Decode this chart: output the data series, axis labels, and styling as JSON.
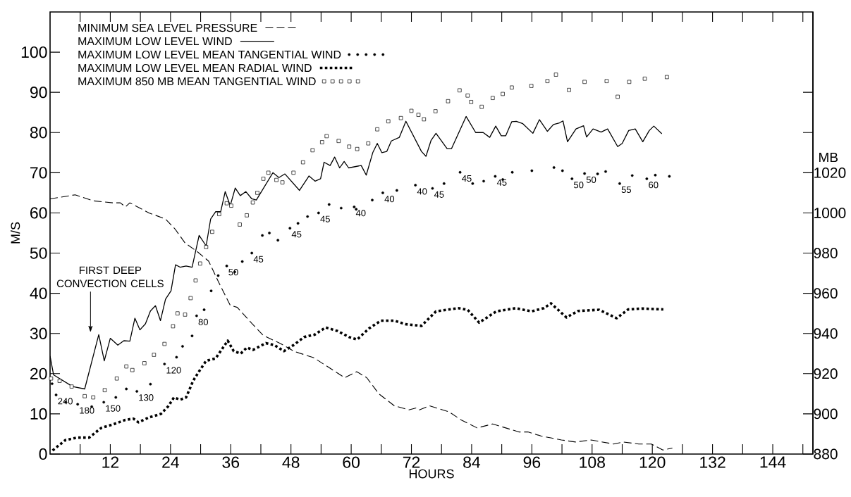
{
  "chart_data": {
    "type": "line",
    "xlabel": "HOURS",
    "ylabel": "M/S",
    "y2label": "MB",
    "xlim": [
      0,
      152
    ],
    "ylim": [
      0,
      110
    ],
    "y2lim": [
      880,
      1100
    ],
    "xticks": [
      {
        "value": 6,
        "label": null
      },
      12,
      {
        "value": 18,
        "label": null
      },
      24,
      {
        "value": 30,
        "label": null
      },
      36,
      {
        "value": 42,
        "label": null
      },
      48,
      {
        "value": 54,
        "label": null
      },
      60,
      {
        "value": 66,
        "label": null
      },
      72,
      {
        "value": 78,
        "label": null
      },
      84,
      {
        "value": 90,
        "label": null
      },
      96,
      {
        "value": 102,
        "label": null
      },
      108,
      {
        "value": 114,
        "label": null
      },
      120,
      {
        "value": 126,
        "label": null
      },
      132,
      {
        "value": 138,
        "label": null
      },
      144,
      {
        "value": 150,
        "label": null
      }
    ],
    "yticks": [
      0,
      10,
      20,
      30,
      40,
      50,
      60,
      70,
      80,
      90,
      100
    ],
    "y2ticks": [
      880,
      900,
      920,
      940,
      960,
      980,
      1000,
      1020,
      {
        "value": 1040,
        "label": null
      },
      {
        "value": 1060,
        "label": null
      }
    ],
    "legend": "top left",
    "series": [
      {
        "name": "MINIMUM SEA LEVEL PRESSURE",
        "axis": "y2",
        "line_style": "dashed",
        "color": "#000000",
        "x": [
          0,
          5,
          8.6,
          12.6,
          14,
          15,
          15.9,
          19.7,
          23,
          24.9,
          26.9,
          29.2,
          31.6,
          33.5,
          35.9,
          37.3,
          40.2,
          42.5,
          45.9,
          48.7,
          52.5,
          58.7,
          61.1,
          63.1,
          65.5,
          68.6,
          71.5,
          73,
          73.6,
          75.6,
          79.5,
          81.9,
          85.1,
          88.2,
          93.4,
          95.2,
          97.8,
          101.9,
          104.7,
          107.8,
          112.3,
          114.2,
          117.3,
          119.8,
          122.1,
          124
        ],
        "values": [
          1007,
          1009,
          1006,
          1005,
          1005,
          1003,
          1005,
          1000,
          997,
          992,
          985,
          981,
          976,
          966,
          954,
          953,
          945,
          939,
          935,
          931,
          928,
          918,
          921,
          918,
          910,
          904,
          902,
          903,
          902,
          904,
          901,
          897,
          893,
          895,
          891,
          891,
          889,
          887,
          886,
          887,
          885,
          886,
          885,
          885,
          882,
          883
        ]
      },
      {
        "name": "MAXIMUM LOW LEVEL WIND",
        "line_style": "solid",
        "color": "#000000",
        "x": [
          0,
          0.7,
          4.5,
          6.9,
          9.7,
          10.8,
          12,
          13.5,
          14.7,
          15.9,
          16.9,
          17.9,
          19,
          20,
          21,
          22,
          23,
          24.1,
          25,
          25.9,
          27.1,
          28.3,
          29.7,
          31.1,
          32,
          33,
          34,
          34.9,
          35.9,
          36.9,
          37.9,
          39,
          40.2,
          41.1,
          44.4,
          45.6,
          46.8,
          49.7,
          51.6,
          52.8,
          53.9,
          54.6,
          55.8,
          56.7,
          57.7,
          58.6,
          59.5,
          62,
          63,
          64.3,
          65.2,
          66.1,
          67.1,
          68,
          69.6,
          70.9,
          74,
          74.9,
          75.9,
          76.9,
          79.1,
          80,
          82.9,
          84.8,
          86.3,
          87.6,
          88.8,
          89.9,
          90.8,
          92,
          92.9,
          94.2,
          96.2,
          97.5,
          99.1,
          100.3,
          101.5,
          102.2,
          103.1,
          104.8,
          106.3,
          106.9,
          108.2,
          109.8,
          111.1,
          113.1,
          114,
          115.3,
          116.6,
          118.1,
          119.4,
          120.3,
          121.9
        ],
        "values": [
          24.4,
          19.7,
          16.8,
          16.2,
          29.7,
          23.2,
          28.8,
          27.1,
          28.2,
          28.1,
          33.8,
          30.9,
          32.4,
          35.6,
          36.9,
          33.2,
          38.5,
          40.6,
          47.1,
          46.5,
          46.8,
          46.5,
          54.4,
          51.8,
          58.5,
          60.3,
          60.3,
          65.3,
          61.8,
          66.2,
          64.3,
          65.3,
          63.5,
          63.2,
          70,
          68.8,
          69.7,
          65.6,
          69.2,
          67.9,
          68.5,
          72.6,
          71.8,
          73.9,
          71.2,
          72.8,
          71.2,
          71.8,
          69.4,
          75,
          77.3,
          75,
          75.3,
          77.9,
          78.8,
          82.8,
          75.3,
          74.1,
          78,
          79.8,
          76,
          76,
          84,
          80,
          80,
          78.8,
          81.6,
          79.2,
          79.2,
          82.7,
          82.8,
          82.2,
          79.8,
          83.2,
          80.3,
          82,
          82.4,
          82.9,
          77.7,
          80.9,
          81.7,
          78.9,
          80.9,
          80.1,
          80.9,
          76.5,
          77.3,
          80.5,
          80.9,
          77.7,
          80.5,
          81.6,
          79.7
        ]
      },
      {
        "name": "MAXIMUM LOW LEVEL MEAN TANGENTIAL WIND",
        "type": "scatter",
        "marker": "circle",
        "color": "#000000",
        "x": [
          0.4,
          1.2,
          3.1,
          5.5,
          8.3,
          10.7,
          13.1,
          15.2,
          17.3,
          20,
          22.8,
          25.2,
          26.4,
          28.3,
          29.2,
          30.7,
          32.1,
          33.5,
          35.2,
          36.8,
          38.3,
          40.2,
          42.3,
          43.7,
          45.4,
          47.8,
          49.4,
          51.3,
          53.5,
          55.6,
          58,
          60.6,
          61,
          64.2,
          66.3,
          69.1,
          72.8,
          76.2,
          78.5,
          81.7,
          84.2,
          86.4,
          88.7,
          90.2,
          92.1,
          96,
          100.4,
          102.1,
          104,
          106.5,
          109.1,
          110.7,
          113.5,
          116,
          118.9,
          120.6,
          123.4
        ],
        "values": [
          17.5,
          14.7,
          12.9,
          12.4,
          11.8,
          12.9,
          14.1,
          16.2,
          15.6,
          17.4,
          22.4,
          24.1,
          26.8,
          29.4,
          34.4,
          35.9,
          40.6,
          44.4,
          46.8,
          45.3,
          47.9,
          50,
          54.4,
          55,
          53.2,
          56.2,
          57.4,
          59.1,
          60,
          62.1,
          61.2,
          61.5,
          60.9,
          63.2,
          65,
          65.6,
          66.9,
          66.1,
          67.3,
          70.1,
          67.3,
          67.9,
          69.1,
          68.3,
          70.1,
          70.5,
          71.3,
          70.5,
          68.5,
          69.8,
          69.7,
          70.3,
          67.3,
          69.3,
          68.5,
          69.4,
          69.1
        ]
      },
      {
        "name": "MAXIMUM LOW LEVEL MEAN RADIAL WIND",
        "line_style": "dotted",
        "color": "#000000",
        "x": [
          0.5,
          3.1,
          5.5,
          7.8,
          10.2,
          12.6,
          15,
          16.6,
          17.6,
          19.7,
          22.1,
          23.5,
          24.7,
          25.9,
          27.1,
          28.5,
          29.7,
          31.1,
          33,
          35.4,
          36.6,
          38,
          39.2,
          40.4,
          43,
          44.7,
          46.6,
          48.5,
          50.6,
          52.7,
          54.9,
          57.3,
          59.6,
          61.2,
          63.5,
          65.9,
          68.6,
          70.8,
          74,
          76.9,
          81.3,
          83.2,
          85.5,
          88.9,
          92.8,
          95.9,
          98.4,
          99.8,
          102.9,
          105.2,
          109.4,
          112.9,
          115.2,
          118,
          122.2
        ],
        "values": [
          0.9,
          3.5,
          4.1,
          4.1,
          6.5,
          7.4,
          8.5,
          8.8,
          7.9,
          9.1,
          10,
          11.8,
          14.1,
          13.5,
          14.1,
          18.2,
          20.6,
          23.2,
          23.8,
          28.2,
          25.6,
          25,
          26.5,
          25.9,
          27.6,
          27.1,
          25.6,
          27.1,
          29.1,
          29.7,
          31.5,
          30.6,
          29.1,
          28.5,
          31.2,
          33.2,
          33.2,
          32.3,
          31.9,
          35.5,
          36.3,
          35.9,
          32.7,
          35.5,
          36.3,
          35.5,
          36.3,
          37.5,
          34,
          35.6,
          35.9,
          33.8,
          36,
          36.2,
          36
        ]
      },
      {
        "name": "MAXIMUM 850 MB MEAN TANGENTIAL WIND",
        "type": "scatter",
        "marker": "square",
        "color": "#000000",
        "x": [
          0.2,
          1.9,
          4.3,
          6.9,
          8.6,
          10.9,
          13.3,
          15.2,
          16.4,
          18.8,
          20.7,
          22.8,
          24.5,
          25.4,
          26.9,
          28,
          29,
          29.9,
          31.1,
          32.3,
          33.7,
          35.2,
          36.1,
          37.8,
          39.2,
          40.4,
          41.3,
          42.5,
          43.5,
          45.1,
          46.3,
          48.5,
          50.4,
          52.3,
          54.2,
          55.1,
          57.5,
          59.6,
          61.2,
          63.4,
          65.2,
          67.4,
          69.9,
          72,
          73.4,
          74.5,
          76.8,
          79.3,
          81.6,
          83.2,
          83.9,
          86,
          88.2,
          90.2,
          92,
          95.9,
          99.1,
          100.8,
          103.4,
          106.5,
          110.9,
          113.1,
          115.4,
          118.5,
          122.9
        ],
        "values": [
          18.8,
          18.2,
          16.8,
          14.4,
          14.1,
          15.9,
          18.8,
          21.8,
          20.9,
          22.6,
          24.7,
          27.4,
          31.8,
          35,
          34.7,
          38.8,
          43.2,
          47.4,
          51.5,
          55.3,
          59.7,
          62.4,
          61.8,
          57.1,
          59.4,
          62.6,
          65,
          68.5,
          70,
          68.2,
          67.6,
          70,
          72.6,
          75.6,
          77.6,
          79.1,
          77.9,
          76.5,
          75.9,
          77.3,
          80.8,
          82.8,
          83.6,
          85.4,
          84.4,
          83.3,
          85.3,
          87.8,
          90.5,
          89.2,
          87.6,
          86.4,
          88.6,
          89.6,
          91.2,
          91.6,
          92.8,
          94.4,
          90.6,
          92.6,
          92.8,
          88.9,
          92.6,
          93.4,
          93.8
        ]
      }
    ],
    "annotations": [
      "FIRST DEEP CONVECTION CELLS",
      {
        "text": "240",
        "x": 1.2,
        "y": 14.7
      },
      {
        "text": "180",
        "x": 5.5,
        "y": 12.4
      },
      {
        "text": "150",
        "x": 10.7,
        "y": 12.9
      },
      {
        "text": "130",
        "x": 17.3,
        "y": 15.6
      },
      {
        "text": "120",
        "x": 22.8,
        "y": 22.4
      },
      {
        "text": "80",
        "x": 29.2,
        "y": 34.4
      },
      {
        "text": "50",
        "x": 35.2,
        "y": 46.8
      },
      {
        "text": "45",
        "x": 40.2,
        "y": 50
      },
      {
        "text": "45",
        "x": 47.8,
        "y": 56.2
      },
      {
        "text": "45",
        "x": 53.5,
        "y": 60
      },
      {
        "text": "40",
        "x": 60.6,
        "y": 61.5
      },
      {
        "text": "40",
        "x": 66.3,
        "y": 65
      },
      {
        "text": "40",
        "x": 72.8,
        "y": 66.9
      },
      {
        "text": "45",
        "x": 76.2,
        "y": 66.1
      },
      {
        "text": "45",
        "x": 81.7,
        "y": 70.1
      },
      {
        "text": "45",
        "x": 88.7,
        "y": 69.1
      },
      {
        "text": "50",
        "x": 104,
        "y": 68.5
      },
      {
        "text": "50",
        "x": 106.5,
        "y": 69.8
      },
      {
        "text": "55",
        "x": 113.5,
        "y": 67.3
      },
      {
        "text": "60",
        "x": 118.9,
        "y": 68.5
      }
    ]
  }
}
